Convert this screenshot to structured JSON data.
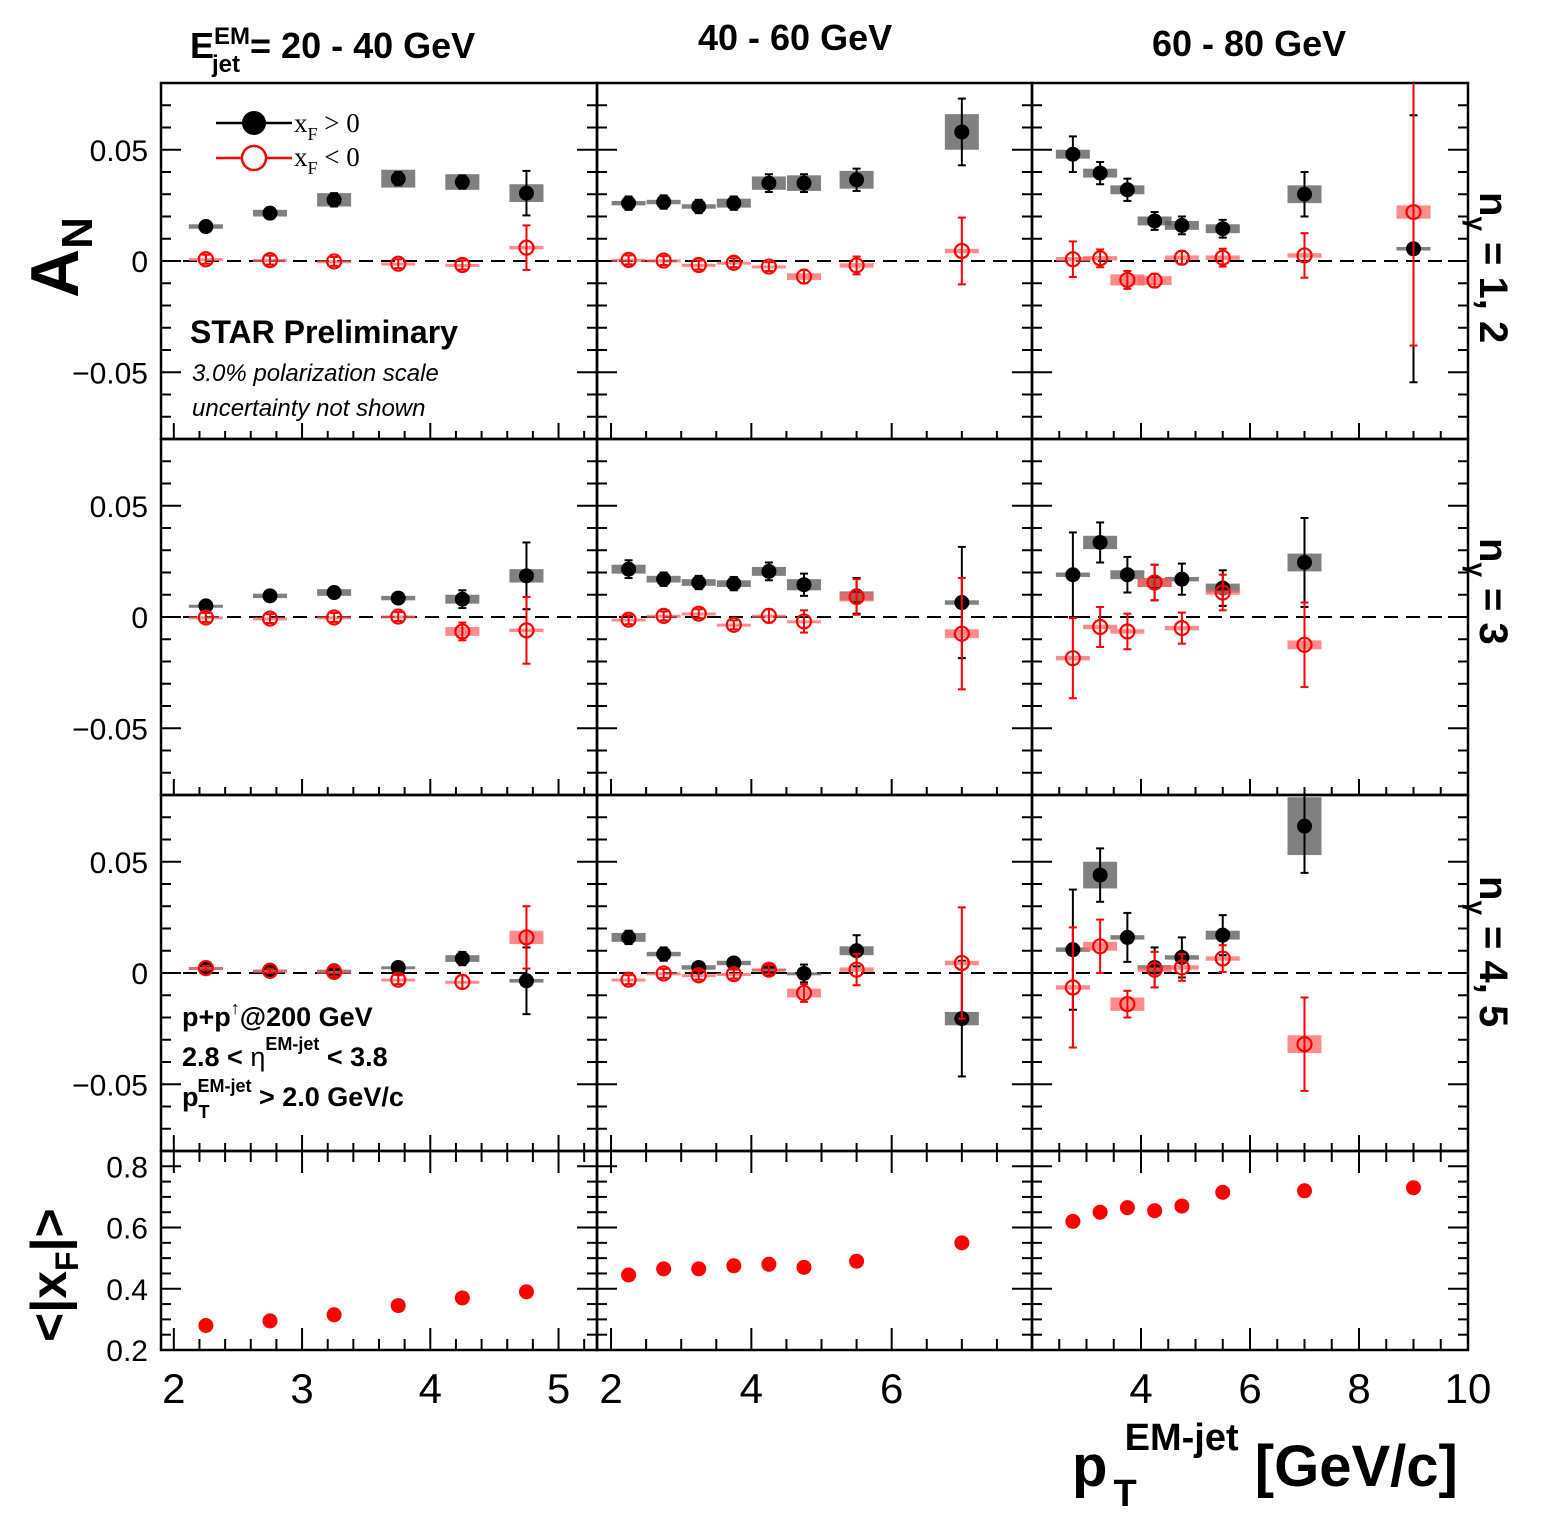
{
  "chart_data": {
    "type": "scatter",
    "columns": [
      {
        "title_main": "E",
        "title_sup": "EM",
        "title_sub": "jet",
        "title_rest": " = 20 - 40 GeV",
        "xlim": [
          1.9,
          5.3
        ],
        "xticks": [
          2,
          3,
          4,
          5
        ]
      },
      {
        "title_main": "",
        "title_sup": "",
        "title_sub": "",
        "title_rest": "40 - 60 GeV",
        "xlim": [
          1.8,
          8.0
        ],
        "xticks": [
          2,
          4,
          6
        ]
      },
      {
        "title_main": "",
        "title_sup": "",
        "title_sub": "",
        "title_rest": "60 - 80 GeV",
        "xlim": [
          2.0,
          10.0
        ],
        "xticks": [
          4,
          6,
          8,
          10
        ]
      }
    ],
    "rows": [
      {
        "label_main": "n",
        "label_sub": "γ",
        "label_rest": " = 1, 2"
      },
      {
        "label_main": "n",
        "label_sub": "γ",
        "label_rest": " = 3"
      },
      {
        "label_main": "n",
        "label_sub": "γ",
        "label_rest": " = 4, 5"
      }
    ],
    "an_ylim": [
      -0.08,
      0.08
    ],
    "an_yticks": [
      -0.05,
      0,
      0.05
    ],
    "an_ytick_labels": [
      "−0.05",
      "0",
      "0.05"
    ],
    "xf_ylim": [
      0.2,
      0.85
    ],
    "xf_yticks": [
      0.2,
      0.4,
      0.6,
      0.8
    ],
    "xf_ytick_labels": [
      "0.2",
      "0.4",
      "0.6",
      "0.8"
    ],
    "ylabel_an": {
      "main": "A",
      "sub": "N"
    },
    "ylabel_xf": {
      "open": "<|x",
      "sub": "F",
      "close": "|>"
    },
    "xlabel": {
      "main": "p",
      "sub": "T",
      "sup": "EM-jet",
      "rest": " [GeV/c]"
    },
    "legend": [
      {
        "main": "x",
        "sub": "F",
        "rest": " > 0",
        "marker": "filled",
        "color": "#000000"
      },
      {
        "main": "x",
        "sub": "F",
        "rest": " < 0",
        "marker": "open",
        "color": "#ff0000"
      }
    ],
    "annotations": {
      "preliminary": "STAR Preliminary",
      "scale_line1": "3.0% polarization scale",
      "scale_line2": "uncertainty not shown",
      "kin1_a": "p+p",
      "kin1_sup": "↑",
      "kin1_b": "@200 GeV",
      "kin2_a": "2.8 < ",
      "kin2_eta": "η",
      "kin2_sup": "EM-jet",
      "kin2_b": " < 3.8",
      "kin3_a": "p",
      "kin3_sub": "T",
      "kin3_sup": "EM-jet",
      "kin3_b": " > 2.0 GeV/c"
    },
    "colors": {
      "xf_pos": "#000000",
      "xf_neg": "#ff0000",
      "sys_pos": "#555555",
      "sys_neg": "#ff6666"
    },
    "x_points": [
      [
        2.25,
        2.75,
        3.25,
        3.75,
        4.25,
        4.75
      ],
      [
        2.25,
        2.75,
        3.25,
        3.75,
        4.25,
        4.75,
        5.5,
        7.0
      ],
      [
        2.75,
        3.25,
        3.75,
        4.25,
        4.75,
        5.5,
        7.0,
        9.0
      ]
    ],
    "panels": [
      [
        {
          "pos": [
            [
              0.0155,
              0.002
            ],
            [
              0.0215,
              0.002
            ],
            [
              0.0275,
              0.003
            ],
            [
              0.037,
              0.003
            ],
            [
              0.0355,
              0.003
            ],
            [
              0.0305,
              0.01
            ]
          ],
          "neg": [
            [
              0.0008,
              0.002
            ],
            [
              0.0004,
              0.002
            ],
            [
              -0.0002,
              0.002
            ],
            [
              -0.0012,
              0.002
            ],
            [
              -0.0018,
              0.002
            ],
            [
              0.006,
              0.01
            ]
          ],
          "pos_sys": [
            0.001,
            0.0015,
            0.003,
            0.004,
            0.0035,
            0.004
          ],
          "neg_sys": [
            0.0005,
            0.0005,
            0.0005,
            0.0005,
            0.0005,
            0.0008
          ]
        },
        {
          "pos": [
            [
              0.026,
              0.003
            ],
            [
              0.0265,
              0.003
            ],
            [
              0.0245,
              0.003
            ],
            [
              0.026,
              0.003
            ],
            [
              0.035,
              0.004
            ],
            [
              0.035,
              0.004
            ],
            [
              0.0365,
              0.005
            ],
            [
              0.058,
              0.015
            ]
          ],
          "neg": [
            [
              0.0005,
              0.002
            ],
            [
              0.0002,
              0.002
            ],
            [
              -0.0018,
              0.002
            ],
            [
              -0.0008,
              0.002
            ],
            [
              -0.0025,
              0.002
            ],
            [
              -0.007,
              0.003
            ],
            [
              -0.002,
              0.004
            ],
            [
              0.0045,
              0.015
            ]
          ],
          "pos_sys": [
            0.001,
            0.001,
            0.001,
            0.002,
            0.003,
            0.0035,
            0.004,
            0.008
          ],
          "neg_sys": [
            0.0005,
            0.0005,
            0.0005,
            0.0005,
            0.0005,
            0.0015,
            0.001,
            0.001
          ]
        },
        {
          "pos": [
            [
              0.048,
              0.008
            ],
            [
              0.0395,
              0.005
            ],
            [
              0.032,
              0.005
            ],
            [
              0.018,
              0.004
            ],
            [
              0.016,
              0.004
            ],
            [
              0.0145,
              0.004
            ],
            [
              0.03,
              0.01
            ],
            [
              0.0055,
              0.06
            ]
          ],
          "neg": [
            [
              0.0008,
              0.008
            ],
            [
              0.0012,
              0.004
            ],
            [
              -0.0085,
              0.004
            ],
            [
              -0.0088,
              0.003
            ],
            [
              0.0015,
              0.003
            ],
            [
              0.0015,
              0.004
            ],
            [
              0.0025,
              0.01
            ],
            [
              0.022,
              0.06
            ]
          ],
          "pos_sys": [
            0.002,
            0.002,
            0.002,
            0.002,
            0.002,
            0.002,
            0.004,
            0.0008
          ],
          "neg_sys": [
            0.001,
            0.001,
            0.0025,
            0.002,
            0.001,
            0.001,
            0.001,
            0.003
          ]
        }
      ],
      [
        {
          "pos": [
            [
              0.005,
              0.002
            ],
            [
              0.0095,
              0.002
            ],
            [
              0.011,
              0.002
            ],
            [
              0.0085,
              0.002
            ],
            [
              0.008,
              0.004
            ],
            [
              0.0185,
              0.015
            ]
          ],
          "neg": [
            [
              -0.0002,
              0.002
            ],
            [
              -0.0007,
              0.002
            ],
            [
              -0.0002,
              0.002
            ],
            [
              0.0002,
              0.002
            ],
            [
              -0.0065,
              0.004
            ],
            [
              -0.006,
              0.015
            ]
          ],
          "pos_sys": [
            0.0005,
            0.001,
            0.0015,
            0.001,
            0.002,
            0.003
          ],
          "neg_sys": [
            0.0005,
            0.0005,
            0.0005,
            0.0005,
            0.002,
            0.0008
          ]
        },
        {
          "pos": [
            [
              0.0215,
              0.004
            ],
            [
              0.017,
              0.003
            ],
            [
              0.0155,
              0.003
            ],
            [
              0.015,
              0.003
            ],
            [
              0.0205,
              0.004
            ],
            [
              0.0145,
              0.005
            ],
            [
              0.0095,
              0.008
            ],
            [
              0.0065,
              0.025
            ]
          ],
          "neg": [
            [
              -0.0012,
              0.002
            ],
            [
              0.0005,
              0.002
            ],
            [
              0.0015,
              0.002
            ],
            [
              -0.0035,
              0.002
            ],
            [
              0.0005,
              0.003
            ],
            [
              -0.002,
              0.005
            ],
            [
              0.009,
              0.008
            ],
            [
              -0.0075,
              0.025
            ]
          ],
          "pos_sys": [
            0.002,
            0.0015,
            0.0015,
            0.0015,
            0.002,
            0.0025,
            0.002,
            0.001
          ],
          "neg_sys": [
            0.0005,
            0.0005,
            0.0005,
            0.0005,
            0.0005,
            0.0005,
            0.002,
            0.002
          ]
        },
        {
          "pos": [
            [
              0.019,
              0.019
            ],
            [
              0.0335,
              0.009
            ],
            [
              0.019,
              0.008
            ],
            [
              0.0155,
              0.008
            ],
            [
              0.017,
              0.007
            ],
            [
              0.013,
              0.008
            ],
            [
              0.0245,
              0.02
            ],
            [
              null,
              null
            ]
          ],
          "neg": [
            [
              -0.0185,
              0.018
            ],
            [
              -0.0045,
              0.009
            ],
            [
              -0.0065,
              0.008
            ],
            [
              0.0155,
              0.008
            ],
            [
              -0.005,
              0.007
            ],
            [
              0.011,
              0.008
            ],
            [
              -0.0125,
              0.019
            ],
            [
              null,
              null
            ]
          ],
          "pos_sys": [
            0.001,
            0.003,
            0.002,
            0.002,
            0.001,
            0.002,
            0.004,
            0
          ],
          "neg_sys": [
            0.001,
            0.001,
            0.001,
            0.002,
            0.001,
            0.001,
            0.002,
            0
          ]
        }
      ],
      [
        {
          "pos": [
            [
              0.0022,
              0.001
            ],
            [
              0.001,
              0.001
            ],
            [
              0.001,
              0.002
            ],
            [
              0.0025,
              0.002
            ],
            [
              0.0065,
              0.003
            ],
            [
              -0.0035,
              0.015
            ]
          ],
          "neg": [
            [
              0.0022,
              0.001
            ],
            [
              0.001,
              0.001
            ],
            [
              0.0005,
              0.002
            ],
            [
              -0.003,
              0.002
            ],
            [
              -0.004,
              0.003
            ],
            [
              0.016,
              0.014
            ]
          ],
          "pos_sys": [
            0.0005,
            0.0005,
            0.0005,
            0.0005,
            0.0015,
            0.0008
          ],
          "neg_sys": [
            0.0005,
            0.0005,
            0.0005,
            0.0005,
            0.0005,
            0.003
          ]
        },
        {
          "pos": [
            [
              0.016,
              0.003
            ],
            [
              0.0085,
              0.003
            ],
            [
              0.0025,
              0.002
            ],
            [
              0.0045,
              0.002
            ],
            [
              0.0015,
              0.002
            ],
            [
              -0.0002,
              0.004
            ],
            [
              0.01,
              0.007
            ],
            [
              -0.0205,
              0.026
            ]
          ],
          "neg": [
            [
              -0.003,
              0.002
            ],
            [
              -0.0002,
              0.002
            ],
            [
              -0.001,
              0.002
            ],
            [
              -0.0005,
              0.002
            ],
            [
              0.0015,
              0.002
            ],
            [
              -0.009,
              0.004
            ],
            [
              0.0015,
              0.007
            ],
            [
              0.0045,
              0.025
            ]
          ],
          "pos_sys": [
            0.002,
            0.001,
            0.001,
            0.001,
            0.0005,
            0.0005,
            0.002,
            0.003
          ],
          "neg_sys": [
            0.0005,
            0.0005,
            0.0005,
            0.0005,
            0.0005,
            0.002,
            0.001,
            0.001
          ]
        },
        {
          "pos": [
            [
              0.0105,
              0.027
            ],
            [
              0.044,
              0.012
            ],
            [
              0.016,
              0.011
            ],
            [
              0.0025,
              0.009
            ],
            [
              0.007,
              0.009
            ],
            [
              0.017,
              0.009
            ],
            [
              0.066,
              0.021
            ],
            [
              null,
              null
            ]
          ],
          "neg": [
            [
              -0.0065,
              0.027
            ],
            [
              0.012,
              0.012
            ],
            [
              -0.014,
              0.006
            ],
            [
              0.0015,
              0.008
            ],
            [
              0.0025,
              0.006
            ],
            [
              0.0065,
              0.006
            ],
            [
              -0.032,
              0.021
            ],
            [
              null,
              null
            ]
          ],
          "pos_sys": [
            0.001,
            0.006,
            0.001,
            0.001,
            0.001,
            0.002,
            0.013,
            0
          ],
          "neg_sys": [
            0.001,
            0.002,
            0.003,
            0.001,
            0.001,
            0.001,
            0.004,
            0
          ]
        }
      ]
    ],
    "xf": [
      [
        0.28,
        0.295,
        0.315,
        0.345,
        0.37,
        0.39
      ],
      [
        0.445,
        0.465,
        0.465,
        0.475,
        0.48,
        0.47,
        0.49,
        0.55
      ],
      [
        0.62,
        0.65,
        0.665,
        0.655,
        0.67,
        0.715,
        0.72,
        0.73
      ]
    ]
  }
}
